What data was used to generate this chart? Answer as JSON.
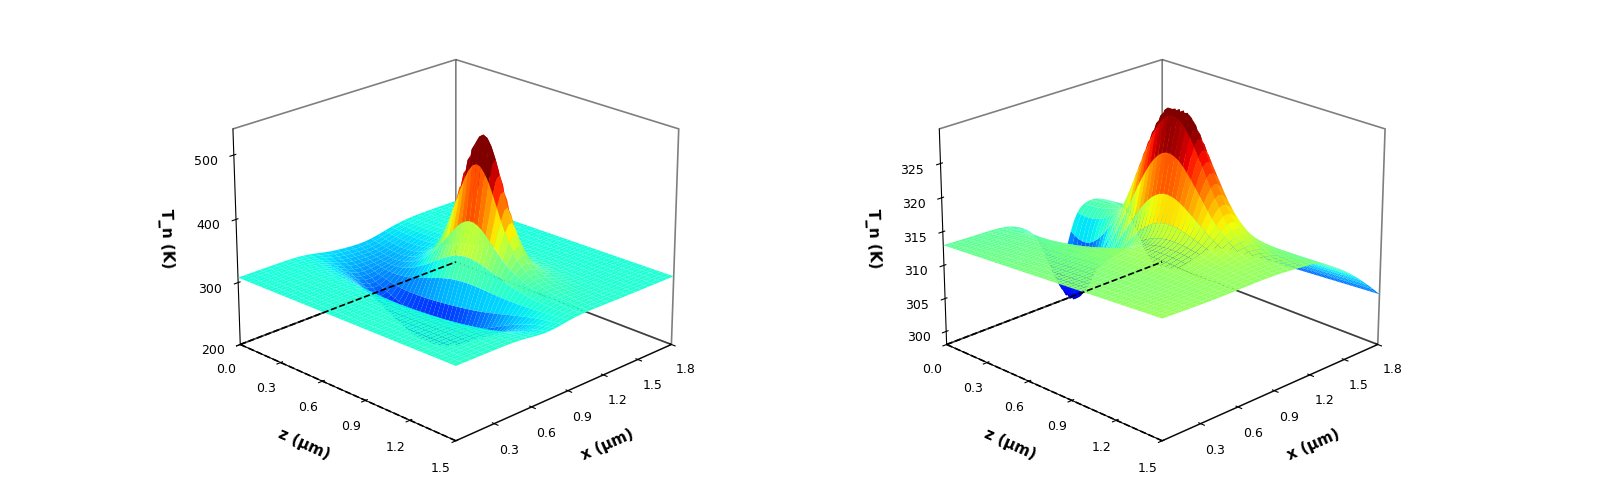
{
  "left_plot": {
    "ylabel": "T_n (K)",
    "xlabel_right": "x (μm)",
    "xlabel_left": "z (μm)",
    "x_ticks": [
      0.3,
      0.6,
      0.9,
      1.2,
      1.5,
      1.8
    ],
    "z_ticks": [
      0.0,
      0.3,
      0.6,
      0.9,
      1.2,
      1.5
    ],
    "y_ticks": [
      200,
      300,
      400,
      500
    ],
    "ylim": [
      200,
      540
    ],
    "T_min": 200,
    "T_max": 480
  },
  "right_plot": {
    "ylabel": "T_n (K)",
    "xlabel_right": "x (μm)",
    "xlabel_left": "z (μm)",
    "x_ticks": [
      0.3,
      0.6,
      0.9,
      1.2,
      1.5,
      1.8
    ],
    "z_ticks": [
      0.0,
      0.3,
      0.6,
      0.9,
      1.2,
      1.5
    ],
    "y_ticks": [
      300,
      305,
      310,
      315,
      320,
      325
    ],
    "ylim": [
      298,
      330
    ],
    "T_min": 298,
    "T_max": 330
  },
  "colormap": "jet",
  "view_elev": 22,
  "view_azim": -135,
  "background_color": "#ffffff",
  "figsize": [
    16.05,
    4.9
  ],
  "dpi": 100
}
